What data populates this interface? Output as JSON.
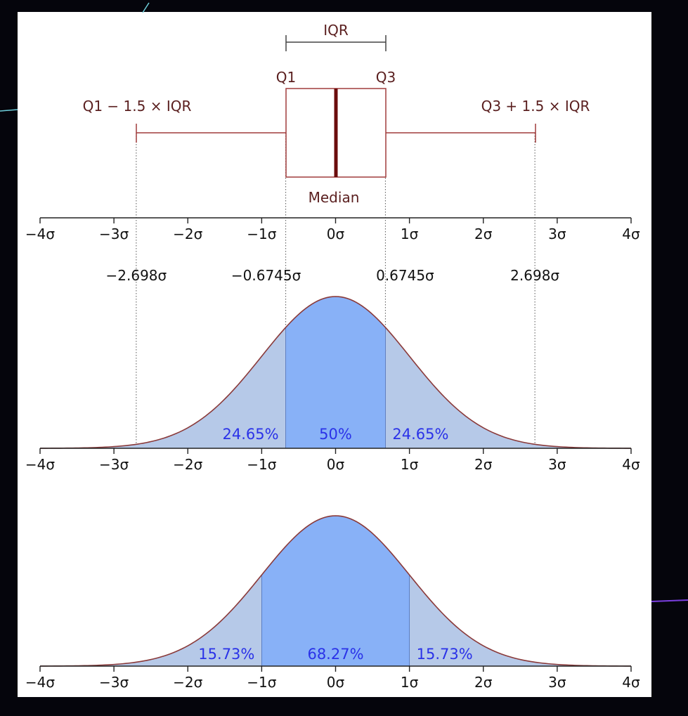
{
  "boxplot": {
    "iqr_label": "IQR",
    "q1_label": "Q1",
    "q3_label": "Q3",
    "lower_fence_label": "Q1 − 1.5 × IQR",
    "upper_fence_label": "Q3 + 1.5 × IQR",
    "median_label": "Median",
    "q1": -0.6745,
    "median": 0,
    "q3": 0.6745,
    "lower_fence": -2.698,
    "upper_fence": 2.698
  },
  "tick_labels": [
    "−4σ",
    "−3σ",
    "−2σ",
    "−1σ",
    "0σ",
    "1σ",
    "2σ",
    "3σ",
    "4σ"
  ],
  "z_labels": [
    "−2.698σ",
    "−0.6745σ",
    "0.6745σ",
    "2.698σ"
  ],
  "chart_data": [
    {
      "type": "area",
      "x": [
        -4,
        -3,
        -2,
        -1,
        0,
        1,
        2,
        3,
        4
      ],
      "xlim": [
        -4,
        4
      ],
      "series": "standard normal density",
      "regions": [
        {
          "from": -2.698,
          "to": -0.6745,
          "label": "24.65%"
        },
        {
          "from": -0.6745,
          "to": 0.6745,
          "label": "50%"
        },
        {
          "from": 0.6745,
          "to": 2.698,
          "label": "24.65%"
        }
      ]
    },
    {
      "type": "area",
      "x": [
        -4,
        -3,
        -2,
        -1,
        0,
        1,
        2,
        3,
        4
      ],
      "xlim": [
        -4,
        4
      ],
      "series": "standard normal density",
      "regions": [
        {
          "from": -4,
          "to": -1,
          "label": "15.73%"
        },
        {
          "from": -1,
          "to": 1,
          "label": "68.27%"
        },
        {
          "from": 1,
          "to": 4,
          "label": "15.73%"
        }
      ]
    }
  ],
  "colors": {
    "box": "#a03c3c",
    "median": "#6b0c0c",
    "curve": "#8a3a3a",
    "light_fill": "#b6c9e8",
    "dark_fill": "#88b1f7",
    "percent_text": "#2a32e8"
  }
}
